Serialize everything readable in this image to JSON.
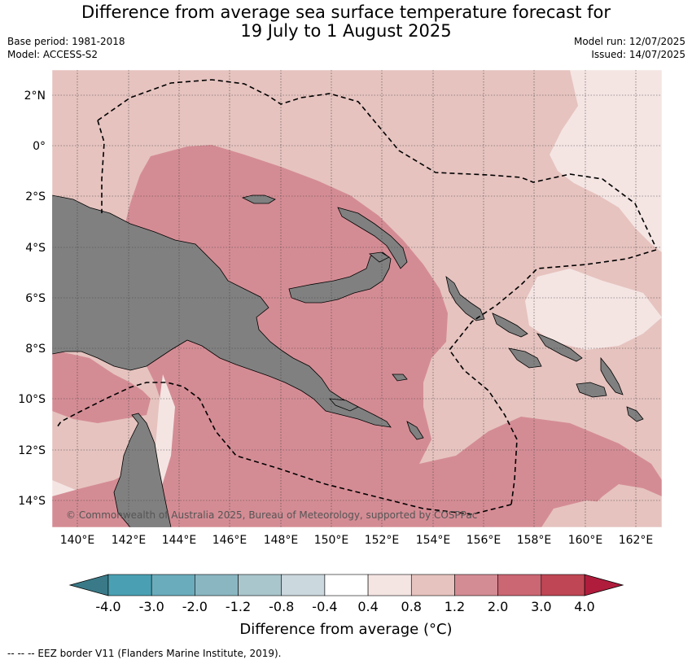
{
  "header": {
    "title_line1": "Difference from average sea surface temperature forecast for",
    "title_line2": "19 July to 1 August 2025",
    "base_period": "Base period: 1981-2018",
    "model": "Model: ACCESS-S2",
    "model_run": "Model run: 12/07/2025",
    "issued": "Issued: 14/07/2025"
  },
  "map": {
    "lat_labels": [
      "2°N",
      "0°",
      "2°S",
      "4°S",
      "6°S",
      "8°S",
      "10°S",
      "12°S",
      "14°S"
    ],
    "lon_labels": [
      "140°E",
      "142°E",
      "144°E",
      "146°E",
      "148°E",
      "150°E",
      "152°E",
      "154°E",
      "156°E",
      "158°E",
      "160°E",
      "162°E"
    ],
    "copyright": "© Commonwealth of Australia 2025, Bureau of Meteorology, supported by COSPPac",
    "land_color": "#808080",
    "gridlines": true
  },
  "colorbar": {
    "title": "Difference from average (°C)",
    "ticks": [
      "-4.0",
      "-3.0",
      "-2.0",
      "-1.2",
      "-0.8",
      "-0.4",
      "0.4",
      "0.8",
      "1.2",
      "2.0",
      "3.0",
      "4.0"
    ],
    "colors": [
      "#3f838f",
      "#4aa0b2",
      "#6aacbc",
      "#8ab6c2",
      "#a9c6cc",
      "#cbd8de",
      "#ffffff",
      "#f4e5e3",
      "#e6c3bf",
      "#d48c94",
      "#cb6673",
      "#bf4654"
    ],
    "low_extend_color": "#3a7a88",
    "high_extend_color": "#b01c3c"
  },
  "footnote": "-- -- -- EEZ border V11 (Flanders Marine Institute, 2019)."
}
